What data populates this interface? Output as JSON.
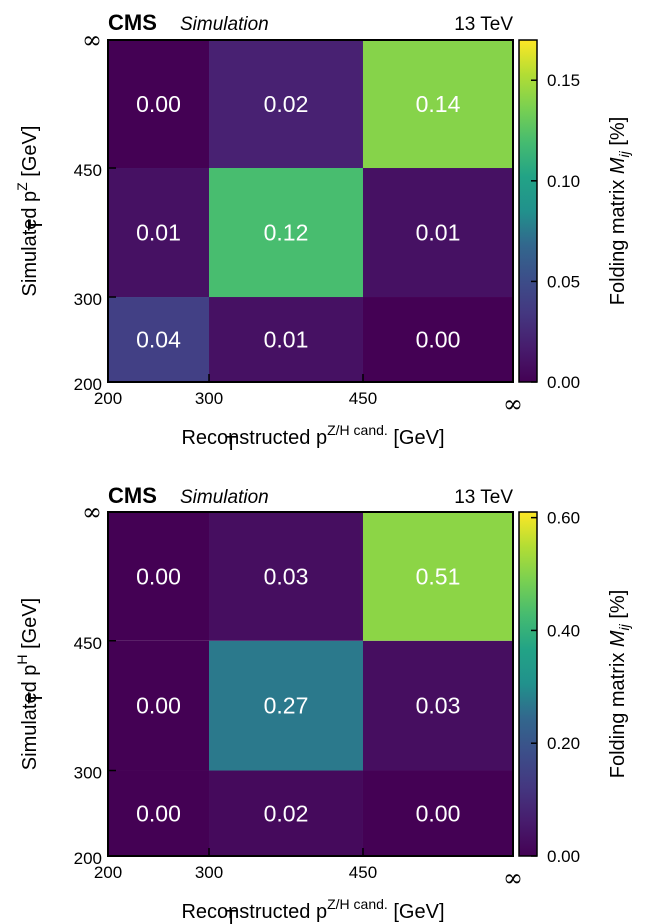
{
  "chart_data": [
    {
      "type": "heatmap",
      "experiment": "CMS",
      "status": "Simulation",
      "energy": "13 TeV",
      "xlabel": "Reconstructed p",
      "xlabel_sub": "T",
      "xlabel_sup": "Z/H cand.",
      "xlabel_unit": " [GeV]",
      "ylabel": "Simulated p",
      "ylabel_sub": "T",
      "ylabel_sup": "Z",
      "ylabel_unit": " [GeV]",
      "x_ticks": [
        "200",
        "300",
        "450",
        "∞"
      ],
      "y_ticks": [
        "200",
        "300",
        "450",
        "∞"
      ],
      "values": [
        [
          0.04,
          0.01,
          0.0
        ],
        [
          0.01,
          0.12,
          0.01
        ],
        [
          0.0,
          0.02,
          0.14
        ]
      ],
      "labels": [
        [
          "0.04",
          "0.01",
          "0.00"
        ],
        [
          "0.01",
          "0.12",
          "0.01"
        ],
        [
          "0.00",
          "0.02",
          "0.14"
        ]
      ],
      "colorbar_label": "Folding matrix ",
      "colorbar_label_math": "M",
      "colorbar_label_sub": "ij",
      "colorbar_label_unit": " [%]",
      "colorbar_ticks": [
        "0.00",
        "0.05",
        "0.10",
        "0.15"
      ],
      "colorbar_tick_values": [
        0,
        0.05,
        0.1,
        0.15
      ],
      "colorbar_range": [
        0,
        0.17
      ],
      "colormap": "viridis"
    },
    {
      "type": "heatmap",
      "experiment": "CMS",
      "status": "Simulation",
      "energy": "13 TeV",
      "xlabel": "Reconstructed p",
      "xlabel_sub": "T",
      "xlabel_sup": "Z/H cand.",
      "xlabel_unit": " [GeV]",
      "ylabel": "Simulated p",
      "ylabel_sub": "T",
      "ylabel_sup": "H",
      "ylabel_unit": " [GeV]",
      "x_ticks": [
        "200",
        "300",
        "450",
        "∞"
      ],
      "y_ticks": [
        "200",
        "300",
        "450",
        "∞"
      ],
      "values": [
        [
          0.0,
          0.02,
          0.0
        ],
        [
          0.0,
          0.27,
          0.03
        ],
        [
          0.0,
          0.03,
          0.51
        ]
      ],
      "labels": [
        [
          "0.00",
          "0.02",
          "0.00"
        ],
        [
          "0.00",
          "0.27",
          "0.03"
        ],
        [
          "0.00",
          "0.03",
          "0.51"
        ]
      ],
      "colorbar_label": "Folding matrix ",
      "colorbar_label_math": "M",
      "colorbar_label_sub": "ij",
      "colorbar_label_unit": " [%]",
      "colorbar_ticks": [
        "0.00",
        "0.20",
        "0.40",
        "0.60"
      ],
      "colorbar_tick_values": [
        0,
        0.2,
        0.4,
        0.6
      ],
      "colorbar_range": [
        0,
        0.61
      ],
      "colormap": "viridis"
    }
  ]
}
